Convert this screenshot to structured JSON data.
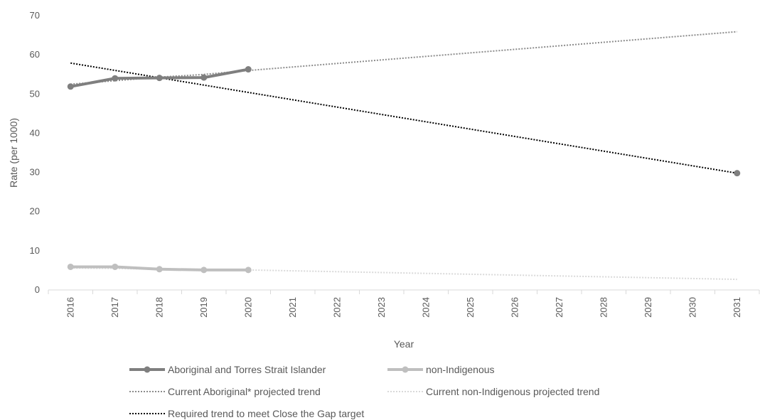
{
  "chart_data": {
    "type": "line",
    "title": "",
    "xlabel": "Year",
    "ylabel": "Rate (per 1000)",
    "ylim": [
      0,
      70
    ],
    "yticks": [
      0,
      10,
      20,
      30,
      40,
      50,
      60,
      70
    ],
    "x": [
      "2016",
      "2017",
      "2018",
      "2019",
      "2020",
      "2021",
      "2022",
      "2023",
      "2024",
      "2025",
      "2026",
      "2027",
      "2028",
      "2029",
      "2030",
      "2031"
    ],
    "grid": "horizontal-none",
    "legend_position": "bottom",
    "series": [
      {
        "name": "Aboriginal and Torres Strait Islander",
        "style": "solid-markers",
        "color": "#7f7f7f",
        "points": [
          {
            "x": "2016",
            "y": 51.9
          },
          {
            "x": "2017",
            "y": 54.0
          },
          {
            "x": "2018",
            "y": 54.1
          },
          {
            "x": "2019",
            "y": 54.2
          },
          {
            "x": "2020",
            "y": 56.3
          }
        ]
      },
      {
        "name": "non-Indigenous",
        "style": "solid-markers",
        "color": "#bfbfbf",
        "points": [
          {
            "x": "2016",
            "y": 5.9
          },
          {
            "x": "2017",
            "y": 5.9
          },
          {
            "x": "2018",
            "y": 5.3
          },
          {
            "x": "2019",
            "y": 5.1
          },
          {
            "x": "2020",
            "y": 5.1
          }
        ]
      },
      {
        "name": "Current Aboriginal* projected trend",
        "style": "dotted",
        "color": "#8c8c8c",
        "points": [
          {
            "x": "2016",
            "y": 52.5
          },
          {
            "x": "2017",
            "y": 53.4
          },
          {
            "x": "2018",
            "y": 54.3
          },
          {
            "x": "2019",
            "y": 55.0
          },
          {
            "x": "2020",
            "y": 56.0
          },
          {
            "x": "2031",
            "y": 65.9
          }
        ]
      },
      {
        "name": "Current non-Indigenous projected trend",
        "style": "dotted",
        "color": "#d9d9d9",
        "points": [
          {
            "x": "2016",
            "y": 5.6
          },
          {
            "x": "2017",
            "y": 5.5
          },
          {
            "x": "2018",
            "y": 5.3
          },
          {
            "x": "2019",
            "y": 5.2
          },
          {
            "x": "2020",
            "y": 5.1
          },
          {
            "x": "2031",
            "y": 2.7
          }
        ]
      },
      {
        "name": "Required trend to meet Close the Gap target",
        "style": "dotted",
        "color": "#000000",
        "points": [
          {
            "x": "2016",
            "y": 57.9
          },
          {
            "x": "2031",
            "y": 29.8
          }
        ],
        "end_marker": {
          "x": "2031",
          "y": 29.8
        }
      }
    ]
  }
}
